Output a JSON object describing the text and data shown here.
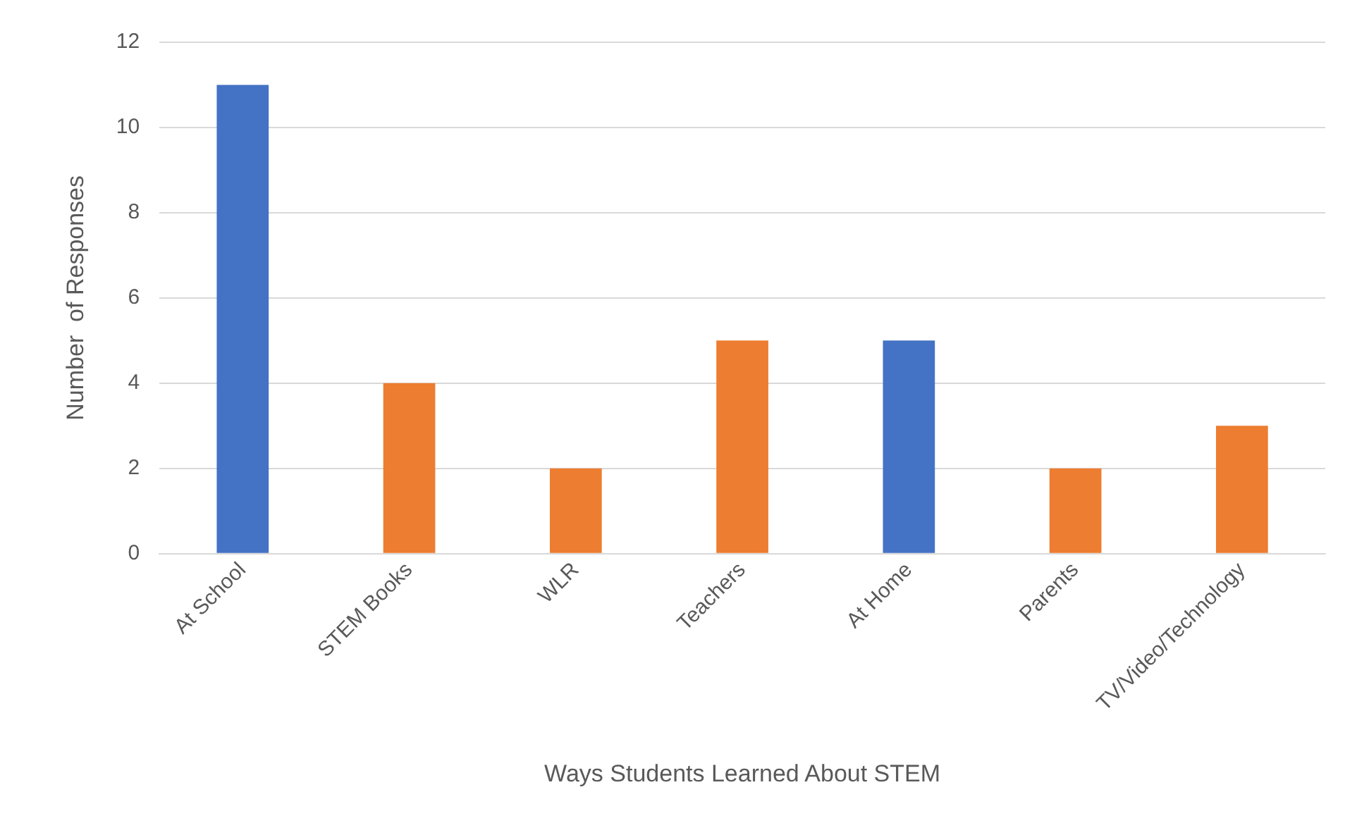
{
  "chart_data": {
    "type": "bar",
    "xlabel": "Ways Students Learned About STEM",
    "ylabel": "Number  of Responses",
    "categories": [
      "At School",
      "STEM Books",
      "WLR",
      "Teachers",
      "At Home",
      "Parents",
      "TV/Video/Technology"
    ],
    "values": [
      11,
      4,
      2,
      5,
      5,
      2,
      3
    ],
    "colors": [
      "#4472c4",
      "#ed7d31",
      "#ed7d31",
      "#ed7d31",
      "#4472c4",
      "#ed7d31",
      "#ed7d31"
    ],
    "ylim": [
      0,
      12
    ],
    "yticks": [
      0,
      2,
      4,
      6,
      8,
      10,
      12
    ],
    "grid": "y",
    "legend": false
  }
}
